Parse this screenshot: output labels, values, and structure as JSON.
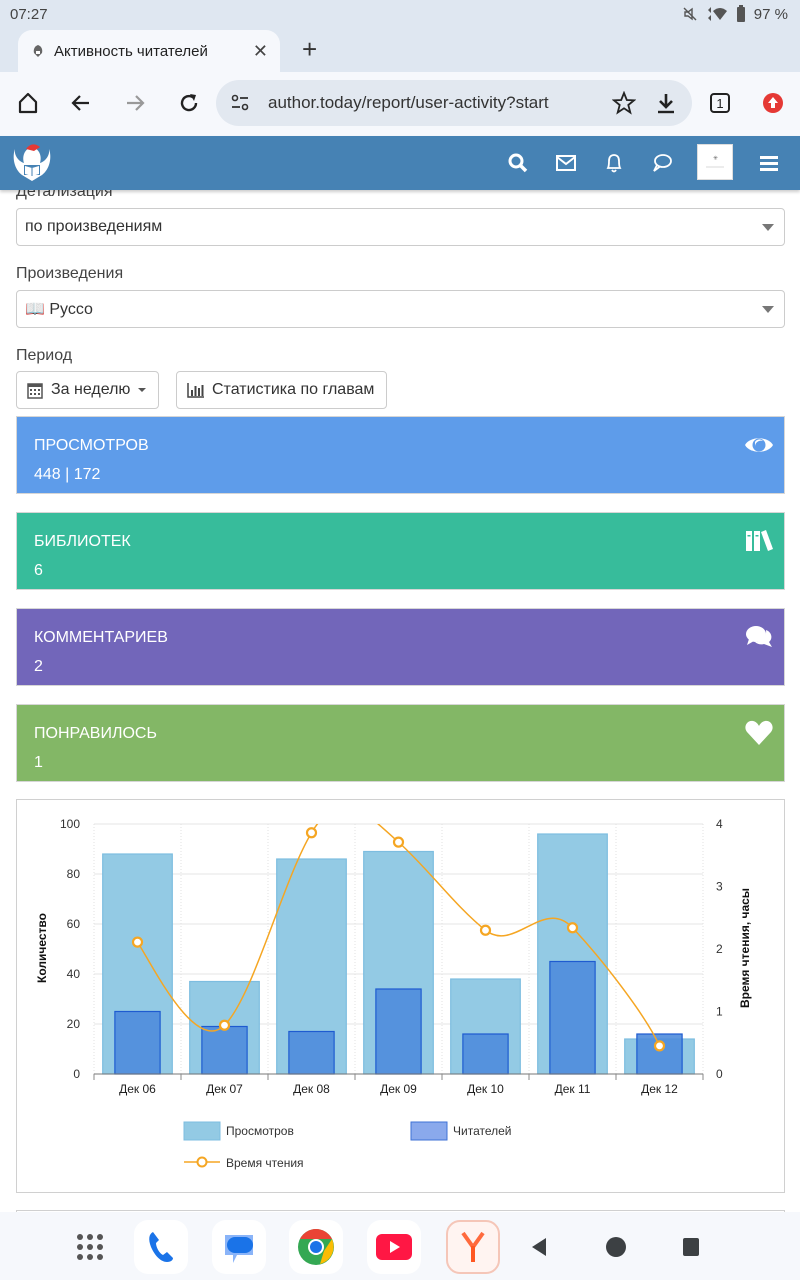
{
  "status_bar": {
    "time": "07:27",
    "battery": "97 %"
  },
  "browser": {
    "tab_title": "Активность читателей",
    "url": "author.today/report/user-activity?start",
    "tab_count": "1"
  },
  "filters": {
    "detail_label": "Детализация",
    "detail_value": "по произведениям",
    "works_label": "Произведения",
    "works_value": "📖 Руссо",
    "period_label": "Период",
    "period_button": "За неделю",
    "chapters_button": "Статистика по главам"
  },
  "cards": [
    {
      "title": "ПРОСМОТРОВ",
      "value": "448 | 172",
      "color": "#5e9cea",
      "icon": "eye-icon"
    },
    {
      "title": "БИБЛИОТЕК",
      "value": "6",
      "color": "#37bc9b",
      "icon": "books-icon"
    },
    {
      "title": "КОММЕНТАРИЕВ",
      "value": "2",
      "color": "#7266ba",
      "icon": "comments-icon"
    },
    {
      "title": "ПОНРАВИЛОСЬ",
      "value": "1",
      "color": "#83b766",
      "icon": "heart-icon"
    }
  ],
  "chart_data": {
    "type": "bar",
    "categories": [
      "Дек 06",
      "Дек 07",
      "Дек 08",
      "Дек 09",
      "Дек 10",
      "Дек 11",
      "Дек 12"
    ],
    "series": [
      {
        "name": "Просмотров",
        "type": "bar",
        "axis": "left",
        "color": "#93cae4",
        "values": [
          88,
          37,
          86,
          89,
          38,
          96,
          14
        ]
      },
      {
        "name": "Читателей",
        "type": "bar",
        "axis": "left",
        "color": "#4f8cdb",
        "values": [
          25,
          19,
          17,
          34,
          16,
          45,
          16
        ]
      },
      {
        "name": "Время чтения",
        "type": "line",
        "axis": "right",
        "color": "#f5a623",
        "values": [
          2.11,
          0.78,
          3.86,
          3.71,
          2.3,
          2.34,
          0.45
        ]
      }
    ],
    "ylabel": "Количество",
    "ylabel_right": "Время чтения, часы",
    "ylim": [
      0,
      100
    ],
    "ylim_right": [
      0,
      4
    ],
    "yticks": [
      "0",
      "20",
      "40",
      "60",
      "80",
      "100"
    ],
    "yticks_right": [
      "0",
      "1",
      "2",
      "3",
      "4"
    ],
    "grid": true,
    "legend_position": "bottom"
  }
}
